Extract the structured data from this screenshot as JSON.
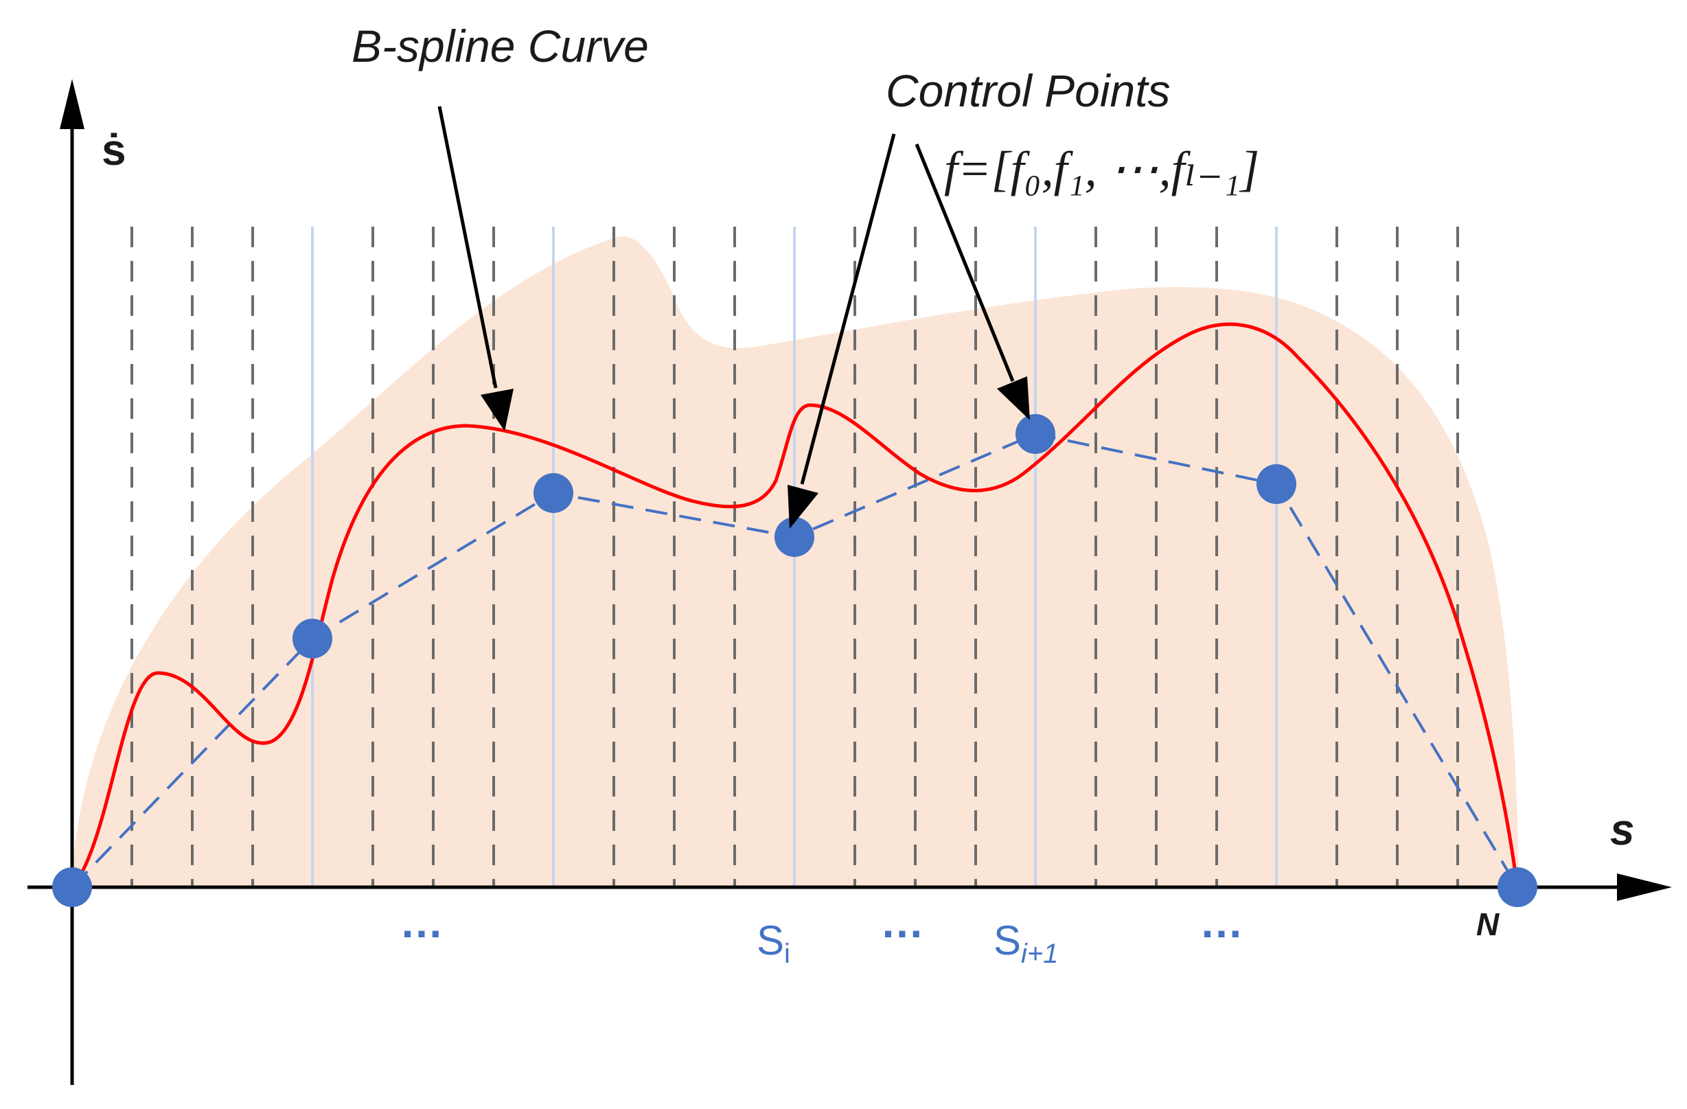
{
  "labels": {
    "curve_label": "B-spline Curve",
    "control_points_label": "Control Points",
    "control_vector": "f=[f₀,f₁, ⋯,fₗ₋₁]",
    "y_axis": "ṡ",
    "x_axis": "s",
    "end_label": "N",
    "ellipsis_1": "…",
    "ellipsis_2": "…",
    "ellipsis_3": "…",
    "knot_i": "S",
    "knot_i_sub": "i",
    "knot_i1": "S",
    "knot_i1_sub": "i+1"
  },
  "colors": {
    "region_fill": "#fbe5d6",
    "curve": "#ff0000",
    "control_polygon": "#4472c4",
    "control_point": "#4472c4",
    "knot_line": "#c5d5ef",
    "grid_dash": "#6b6b6b",
    "axis": "#000000"
  }
}
